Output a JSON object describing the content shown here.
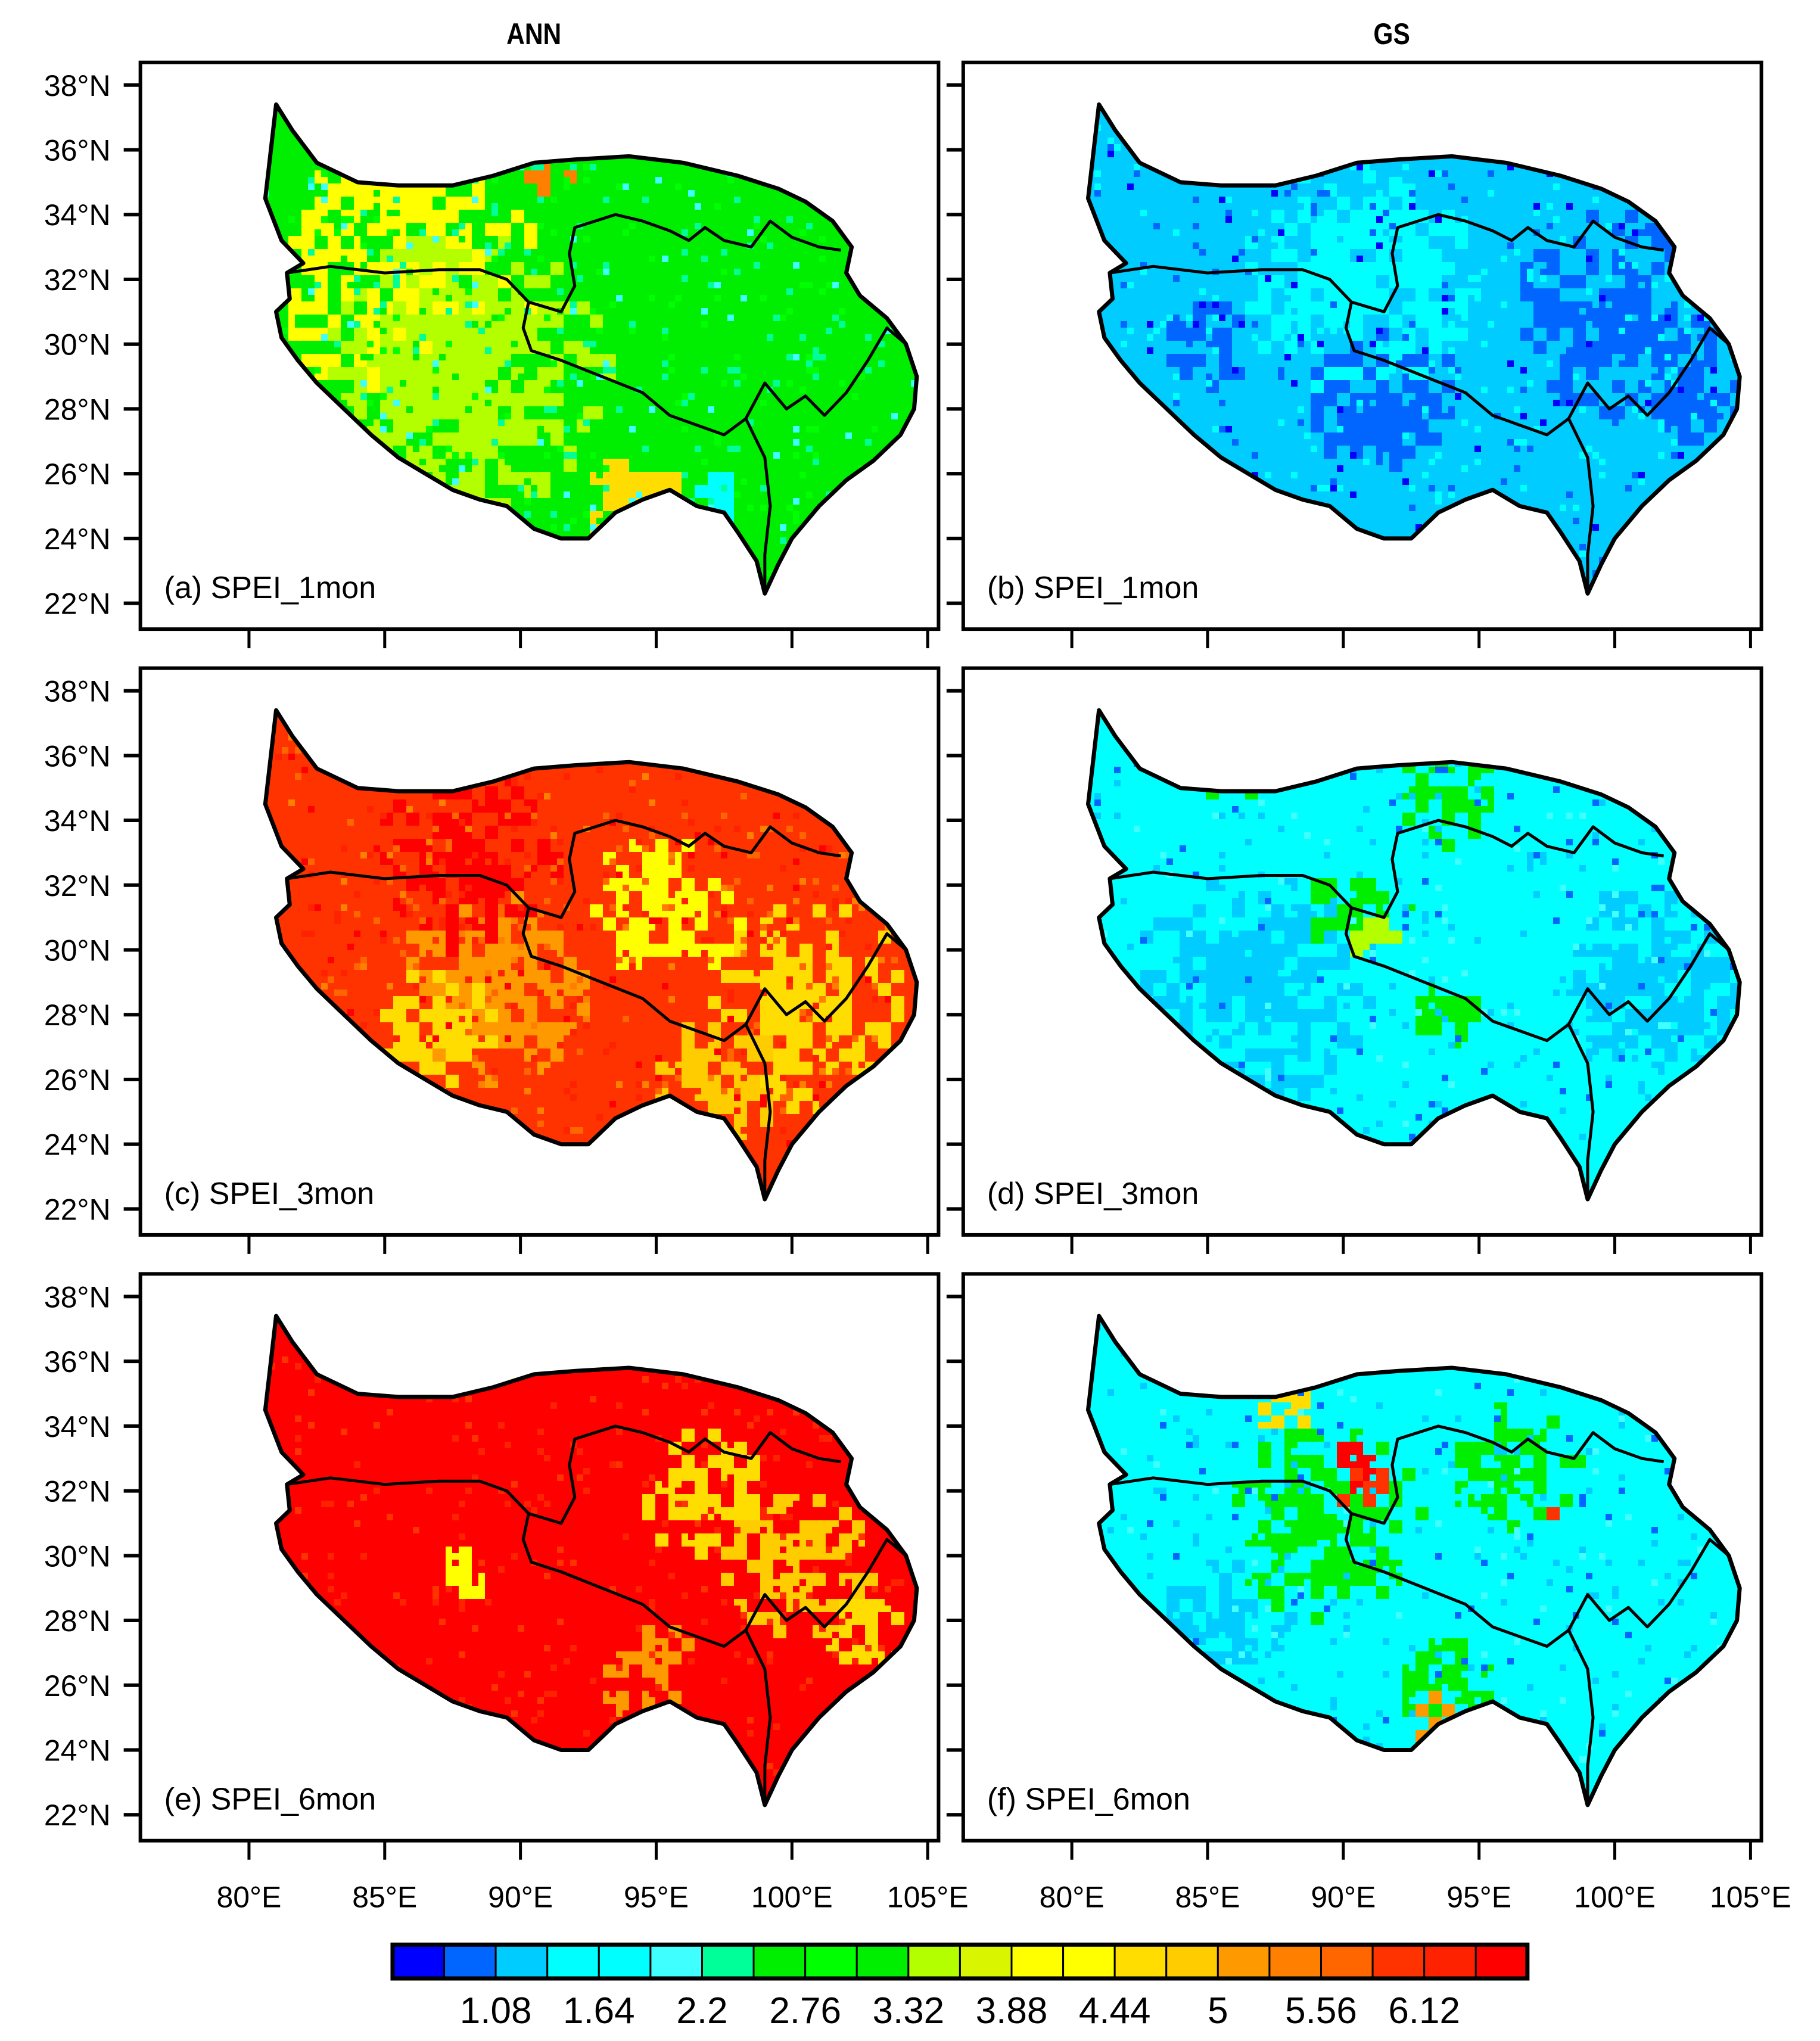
{
  "figure": {
    "column_titles": [
      "ANN",
      "GS"
    ],
    "colorbar": {
      "colors": [
        "#0000ff",
        "#0066ff",
        "#00ccff",
        "#00ffff",
        "#00ffff",
        "#40ffff",
        "#00ff99",
        "#00ee00",
        "#00ff00",
        "#00ee00",
        "#b3ff00",
        "#d9f500",
        "#ffff00",
        "#ffff00",
        "#ffdd00",
        "#ffcc00",
        "#ff9900",
        "#ff8000",
        "#ff6600",
        "#ff3300",
        "#ff2200",
        "#ff0000"
      ],
      "labels": [
        "1.08",
        "1.64",
        "2.2",
        "2.76",
        "3.32",
        "3.88",
        "4.44",
        "5",
        "5.56",
        "6.12"
      ]
    }
  },
  "chart_data": {
    "type": "heatmap",
    "title": "",
    "columns": [
      "ANN",
      "GS"
    ],
    "x_ticks": [
      "80°E",
      "85°E",
      "90°E",
      "95°E",
      "100°E",
      "105°E"
    ],
    "y_ticks": [
      "38°N",
      "36°N",
      "34°N",
      "32°N",
      "30°N",
      "28°N",
      "26°N",
      "24°N",
      "22°N"
    ],
    "xlim": [
      75,
      105
    ],
    "ylim": [
      21.5,
      38.5
    ],
    "colorbar_levels": [
      1.08,
      1.64,
      2.2,
      2.76,
      3.32,
      3.88,
      4.44,
      5,
      5.56,
      6.12
    ],
    "panels": [
      {
        "label": "(a) SPEI_1mon",
        "column": "ANN",
        "dominant_range": [
          2.76,
          4.44
        ],
        "dominant_color": "green/yellow"
      },
      {
        "label": "(b) SPEI_1mon",
        "column": "GS",
        "dominant_range": [
          1.08,
          2.2
        ],
        "dominant_color": "blue/cyan"
      },
      {
        "label": "(c) SPEI_3mon",
        "column": "ANN",
        "dominant_range": [
          4.44,
          6.12
        ],
        "dominant_color": "yellow/red"
      },
      {
        "label": "(d) SPEI_3mon",
        "column": "GS",
        "dominant_range": [
          1.64,
          3.32
        ],
        "dominant_color": "cyan/green"
      },
      {
        "label": "(e) SPEI_6mon",
        "column": "ANN",
        "dominant_range": [
          5.56,
          6.12
        ],
        "dominant_color": "red"
      },
      {
        "label": "(f) SPEI_6mon",
        "column": "GS",
        "dominant_range": [
          1.64,
          5.56
        ],
        "dominant_color": "cyan/green with red patches"
      }
    ]
  },
  "panels": [
    {
      "label": "(a) SPEI_1mon",
      "base": "#00ee00",
      "patches": [
        [
          "#ffff00",
          0.22,
          0.35,
          0.2
        ],
        [
          "#b3ff00",
          0.3,
          0.55,
          0.22
        ],
        [
          "#ff8000",
          0.42,
          0.12,
          0.05
        ],
        [
          "#ffff00",
          0.15,
          0.15,
          0.1
        ],
        [
          "#ffdd00",
          0.55,
          0.8,
          0.08
        ],
        [
          "#00ffff",
          0.68,
          0.78,
          0.05
        ]
      ]
    },
    {
      "label": "(b) SPEI_1mon",
      "base": "#00ccff",
      "patches": [
        [
          "#0066ff",
          0.8,
          0.4,
          0.16
        ],
        [
          "#0066ff",
          0.45,
          0.6,
          0.12
        ],
        [
          "#00ffff",
          0.4,
          0.35,
          0.18
        ],
        [
          "#0066ff",
          0.18,
          0.48,
          0.07
        ],
        [
          "#0066ff",
          0.92,
          0.6,
          0.08
        ]
      ]
    },
    {
      "label": "(c) SPEI_3mon",
      "base": "#ff3300",
      "patches": [
        [
          "#ffdd00",
          0.82,
          0.58,
          0.16
        ],
        [
          "#ffff00",
          0.6,
          0.4,
          0.12
        ],
        [
          "#ff9900",
          0.35,
          0.55,
          0.15
        ],
        [
          "#ffdd00",
          0.25,
          0.65,
          0.1
        ],
        [
          "#ffcc00",
          0.68,
          0.75,
          0.1
        ],
        [
          "#ff0000",
          0.3,
          0.3,
          0.14
        ]
      ]
    },
    {
      "label": "(d) SPEI_3mon",
      "base": "#00ffff",
      "patches": [
        [
          "#00ccff",
          0.25,
          0.55,
          0.18
        ],
        [
          "#00ee00",
          0.4,
          0.4,
          0.08
        ],
        [
          "#b3ff00",
          0.42,
          0.45,
          0.04
        ],
        [
          "#00ee00",
          0.55,
          0.6,
          0.06
        ],
        [
          "#00ee00",
          0.22,
          0.1,
          0.07
        ],
        [
          "#00ccff",
          0.85,
          0.55,
          0.15
        ],
        [
          "#00ee00",
          0.55,
          0.15,
          0.08
        ]
      ]
    },
    {
      "label": "(e) SPEI_6mon",
      "base": "#ff0000",
      "patches": [
        [
          "#ffdd00",
          0.65,
          0.35,
          0.1
        ],
        [
          "#ffcc00",
          0.8,
          0.5,
          0.12
        ],
        [
          "#ffff00",
          0.28,
          0.52,
          0.05
        ],
        [
          "#ff9900",
          0.58,
          0.7,
          0.08
        ],
        [
          "#ffdd00",
          0.9,
          0.65,
          0.07
        ]
      ]
    },
    {
      "label": "(f) SPEI_6mon",
      "base": "#00ffff",
      "patches": [
        [
          "#00ee00",
          0.35,
          0.42,
          0.15
        ],
        [
          "#ff3300",
          0.42,
          0.35,
          0.06
        ],
        [
          "#ff0000",
          0.4,
          0.28,
          0.04
        ],
        [
          "#00ee00",
          0.65,
          0.3,
          0.1
        ],
        [
          "#ffdd00",
          0.3,
          0.18,
          0.05
        ],
        [
          "#ff3300",
          0.7,
          0.38,
          0.02
        ],
        [
          "#00ee00",
          0.55,
          0.75,
          0.08
        ],
        [
          "#ff9900",
          0.5,
          0.8,
          0.04
        ],
        [
          "#00ccff",
          0.2,
          0.6,
          0.1
        ]
      ]
    }
  ]
}
